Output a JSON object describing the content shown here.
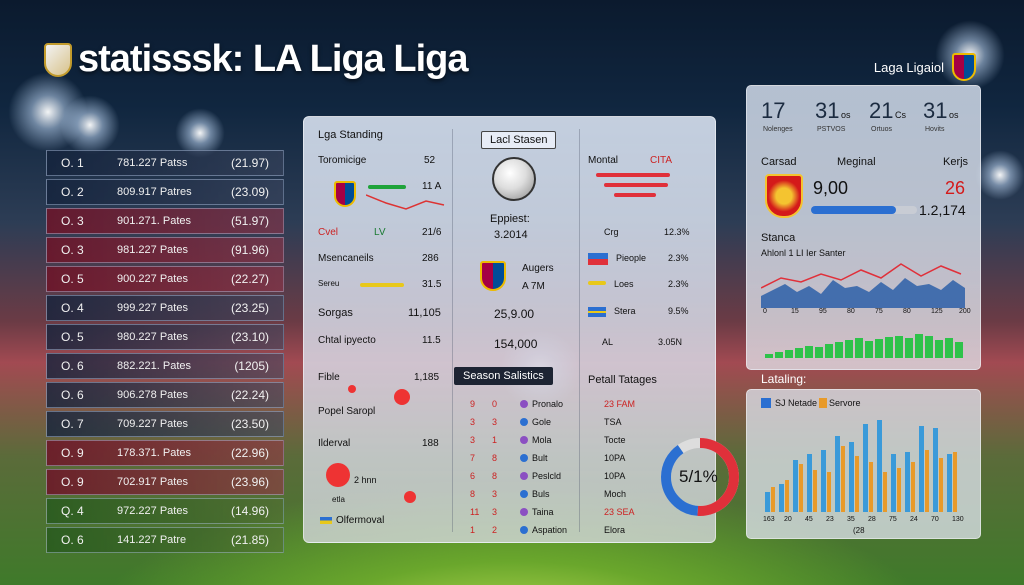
{
  "header": {
    "title": "statisssk: LA Liga Liga",
    "top_right": "Laga Ligaiol"
  },
  "ranking": [
    {
      "pos": "O. 1",
      "pts": "781.227 Patss",
      "val": "(21.97)",
      "tone": "blue"
    },
    {
      "pos": "O. 2",
      "pts": "809.917 Patres",
      "val": "(23.09)",
      "tone": "blue"
    },
    {
      "pos": "O. 3",
      "pts": "901.271. Pates",
      "val": "(51.97)",
      "tone": "red"
    },
    {
      "pos": "O. 3",
      "pts": "981.227 Pates",
      "val": "(91.96)",
      "tone": "red"
    },
    {
      "pos": "O. 5",
      "pts": "900.227 Pates",
      "val": "(22.27)",
      "tone": "red"
    },
    {
      "pos": "O. 4",
      "pts": "999.227 Pates",
      "val": "(23.25)",
      "tone": "blue"
    },
    {
      "pos": "O. 5",
      "pts": "980.227 Pates",
      "val": "(23.10)",
      "tone": "blue"
    },
    {
      "pos": "O. 6",
      "pts": "882.221. Pates",
      "val": "(1205)",
      "tone": "blue"
    },
    {
      "pos": "O. 6",
      "pts": "906.278 Pates",
      "val": "(22.24)",
      "tone": "blue"
    },
    {
      "pos": "O. 7",
      "pts": "709.227 Pates",
      "val": "(23.50)",
      "tone": "blue"
    },
    {
      "pos": "O. 9",
      "pts": "178.371. Pates",
      "val": "(22.96)",
      "tone": "red"
    },
    {
      "pos": "O. 9",
      "pts": "702.917 Pates",
      "val": "(23.96)",
      "tone": "red"
    },
    {
      "pos": "Q. 4",
      "pts": "972.227 Pates",
      "val": "(14.96)",
      "tone": "grn"
    },
    {
      "pos": "O. 6",
      "pts": "141.227 Patre",
      "val": "(21.85)",
      "tone": "grn"
    }
  ],
  "standing": {
    "heading": "Lga Standing",
    "r1_label": "Toromicige",
    "r1_val": "52",
    "r2_val": "11 A",
    "r3_left": "Cvel",
    "r3_mid": "LV",
    "r3_val": "21/6",
    "r4_label": "Msencaneils",
    "r4_val": "286",
    "r5_label": "Sereu",
    "r5_val": "31.5",
    "r6_label": "Sorgas",
    "r6_val": "11,105",
    "r7_label": "Chtal ipyecto",
    "r7_val": "11.5",
    "r8_label": "Fible",
    "r8_val": "1,185",
    "r9_label": "Popel Saropl",
    "r10_label": "Ilderval",
    "r10_val": "188",
    "r11_label": "2 hnn",
    "r12_label": "etla",
    "r13_label": "Olfermoval"
  },
  "center": {
    "pill": "Lacl Stasen",
    "label1": "Eppiest:",
    "val1": "3.2014",
    "team_label": "Augers",
    "team_val": "A 7M",
    "num1": "25,9.00",
    "num2": "154,000",
    "season_pill": "Season Salistics",
    "stats": [
      {
        "a": "9",
        "b": "0",
        "name": "Pronalo"
      },
      {
        "a": "3",
        "b": "3",
        "name": "Gole"
      },
      {
        "a": "3",
        "b": "1",
        "name": "Mola"
      },
      {
        "a": "7",
        "b": "8",
        "name": "Bult"
      },
      {
        "a": "6",
        "b": "8",
        "name": "Peslcld"
      },
      {
        "a": "8",
        "b": "3",
        "name": "Buls"
      },
      {
        "a": "11",
        "b": "3",
        "name": "Taina"
      },
      {
        "a": "1",
        "b": "2",
        "name": "Aspation"
      }
    ]
  },
  "right_col": {
    "r1_label": "Montal",
    "r1_val": "CITA",
    "r2_label": "Crg",
    "r2_val": "12.3%",
    "r3_label": "Pieople",
    "r3_val": "2.3%",
    "r4_label": "Loes",
    "r4_val": "2.3%",
    "r5_label": "Stera",
    "r5_val": "9.5%",
    "r6_label": "AL",
    "r6_val": "3.05N",
    "tatages_heading": "Petall Tatages",
    "tatages": [
      {
        "k": "23 FAM",
        "v": ""
      },
      {
        "k": "TSA",
        "v": ""
      },
      {
        "k": "Tocte",
        "v": ""
      },
      {
        "k": "10PA",
        "v": ""
      },
      {
        "k": "10PA",
        "v": ""
      },
      {
        "k": "Moch",
        "v": ""
      },
      {
        "k": "23 SEA",
        "v": ""
      },
      {
        "k": "Elora",
        "v": ""
      }
    ],
    "donut_label": "5/1%",
    "donut_value": 51
  },
  "kpis": [
    {
      "v": "17",
      "s": "Nolenges"
    },
    {
      "v": "31",
      "sup": "os",
      "s": "PSTVOS"
    },
    {
      "v": "21",
      "sup": "Cs",
      "s": "Ortuos"
    },
    {
      "v": "31",
      "sup": "os",
      "s": "Hovits"
    }
  ],
  "kpi_panel": {
    "l1": "Carsad",
    "l2": "Meginal",
    "l3": "Kerjs",
    "big_val": "9,00",
    "red_val": "26",
    "progress_val": "1.2,174",
    "progress_fraction": 0.8,
    "section": "Stanca",
    "chart_title": "Ahlonl 1 LI Ier Santer",
    "xticks": [
      "0",
      "15",
      "95",
      "80",
      "75",
      "80",
      "125",
      "200"
    ]
  },
  "bars_panel": {
    "title": "Lataling:",
    "legend1": "SJ Netade",
    "legend2": "Servore",
    "xticks": [
      "163",
      "20",
      "45",
      "23",
      "35",
      "28",
      "75",
      "24",
      "70",
      "130"
    ],
    "series_blue": [
      20,
      28,
      52,
      58,
      62,
      76,
      70,
      88,
      92,
      58,
      60,
      86,
      84,
      58
    ],
    "series_orange": [
      25,
      32,
      48,
      42,
      40,
      66,
      56,
      50,
      40,
      44,
      50,
      62,
      54,
      60
    ],
    "xnote": "(28"
  },
  "colors": {
    "accent_red": "#e0303a",
    "accent_blue": "#2b6fd1",
    "green": "#2ec24a"
  }
}
